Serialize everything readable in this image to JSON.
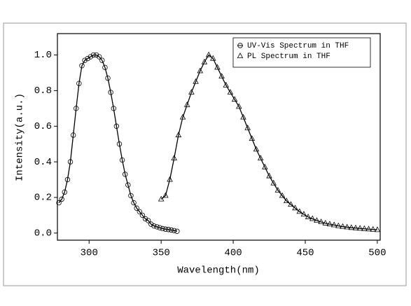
{
  "chart_data": {
    "type": "line",
    "xlabel": "Wavelength(nm)",
    "ylabel": "Intensity(a.u.)",
    "xlim": [
      278,
      502
    ],
    "xticks": [
      300,
      350,
      400,
      450,
      500
    ],
    "ylim": [
      -0.04,
      1.12
    ],
    "yticks": [
      {
        "value": 0,
        "label": "0.0"
      },
      0.2,
      0.4,
      0.6,
      0.8,
      {
        "value": 1,
        "label": "1.0"
      }
    ],
    "legend": "upper right",
    "series": [
      {
        "name": "UV-Vis Spectrum in THF",
        "color": "#000000",
        "marker": "circle",
        "x": [
          279,
          281,
          283,
          285,
          287,
          289,
          291,
          293,
          295,
          297,
          299,
          301,
          303,
          305,
          307,
          309,
          311,
          313,
          315,
          317,
          319,
          321,
          323,
          325,
          327,
          329,
          331,
          333,
          335,
          337,
          339,
          341,
          343,
          345,
          347,
          349,
          351,
          353,
          355,
          357,
          359,
          361
        ],
        "values": [
          0.17,
          0.19,
          0.23,
          0.3,
          0.4,
          0.55,
          0.7,
          0.84,
          0.94,
          0.97,
          0.98,
          0.99,
          1.0,
          1.0,
          0.99,
          0.97,
          0.93,
          0.87,
          0.79,
          0.7,
          0.6,
          0.5,
          0.41,
          0.33,
          0.27,
          0.21,
          0.17,
          0.14,
          0.12,
          0.1,
          0.08,
          0.07,
          0.05,
          0.04,
          0.035,
          0.03,
          0.025,
          0.022,
          0.02,
          0.017,
          0.014,
          0.01
        ]
      },
      {
        "name": "PL Spectrum in THF",
        "color": "#000000",
        "marker": "triangle",
        "x": [
          350,
          353,
          356,
          359,
          362,
          365,
          368,
          371,
          374,
          377,
          380,
          383,
          386,
          389,
          392,
          395,
          398,
          401,
          404,
          407,
          410,
          413,
          416,
          419,
          422,
          425,
          428,
          431,
          434,
          437,
          440,
          443,
          446,
          449,
          452,
          455,
          458,
          461,
          464,
          467,
          470,
          473,
          476,
          479,
          482,
          485,
          488,
          491,
          494,
          497,
          500
        ],
        "values": [
          0.19,
          0.21,
          0.3,
          0.42,
          0.55,
          0.65,
          0.72,
          0.79,
          0.85,
          0.91,
          0.96,
          1.0,
          0.98,
          0.93,
          0.88,
          0.83,
          0.79,
          0.75,
          0.71,
          0.65,
          0.59,
          0.53,
          0.47,
          0.42,
          0.37,
          0.32,
          0.28,
          0.24,
          0.21,
          0.18,
          0.16,
          0.14,
          0.12,
          0.105,
          0.09,
          0.08,
          0.07,
          0.062,
          0.055,
          0.05,
          0.045,
          0.04,
          0.036,
          0.033,
          0.03,
          0.028,
          0.026,
          0.024,
          0.022,
          0.02,
          0.018
        ]
      }
    ]
  }
}
